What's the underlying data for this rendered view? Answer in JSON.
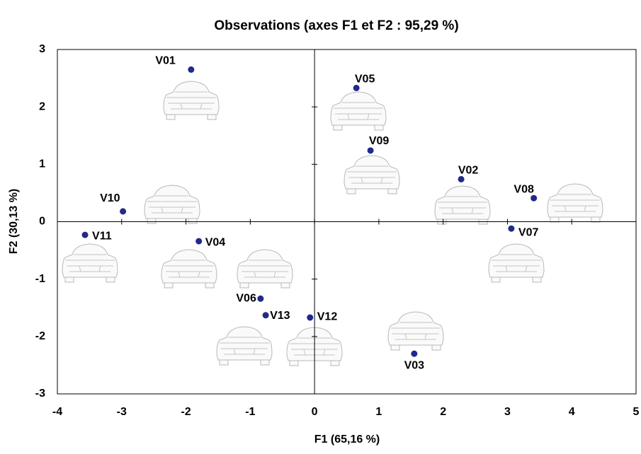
{
  "chart_data": {
    "type": "scatter",
    "title": "Observations (axes F1 et F2 : 95,29 %)",
    "xlabel": "F1 (65,16 %)",
    "ylabel": "F2 (30,13 %)",
    "labels": [
      "V01",
      "V05",
      "V09",
      "V02",
      "V08",
      "V10",
      "V11",
      "V04",
      "V07",
      "V06",
      "V13",
      "V12",
      "V03"
    ],
    "x": [
      -1.92,
      0.65,
      0.87,
      2.28,
      3.41,
      -2.98,
      -3.57,
      -1.8,
      3.06,
      -0.84,
      -0.76,
      -0.07,
      1.55
    ],
    "y": [
      2.65,
      2.33,
      1.24,
      0.74,
      0.41,
      0.18,
      -0.23,
      -0.34,
      -0.12,
      -1.34,
      -1.63,
      -1.67,
      -2.3
    ],
    "color": "#1f2a8a",
    "xlim": [
      -4,
      5
    ],
    "xticks": [
      -4,
      -3,
      -2,
      -1,
      0,
      1,
      2,
      3,
      4,
      5
    ],
    "ylim": [
      -3,
      3
    ],
    "yticks": [
      -3,
      -2,
      -1,
      0,
      1,
      2,
      3
    ]
  }
}
